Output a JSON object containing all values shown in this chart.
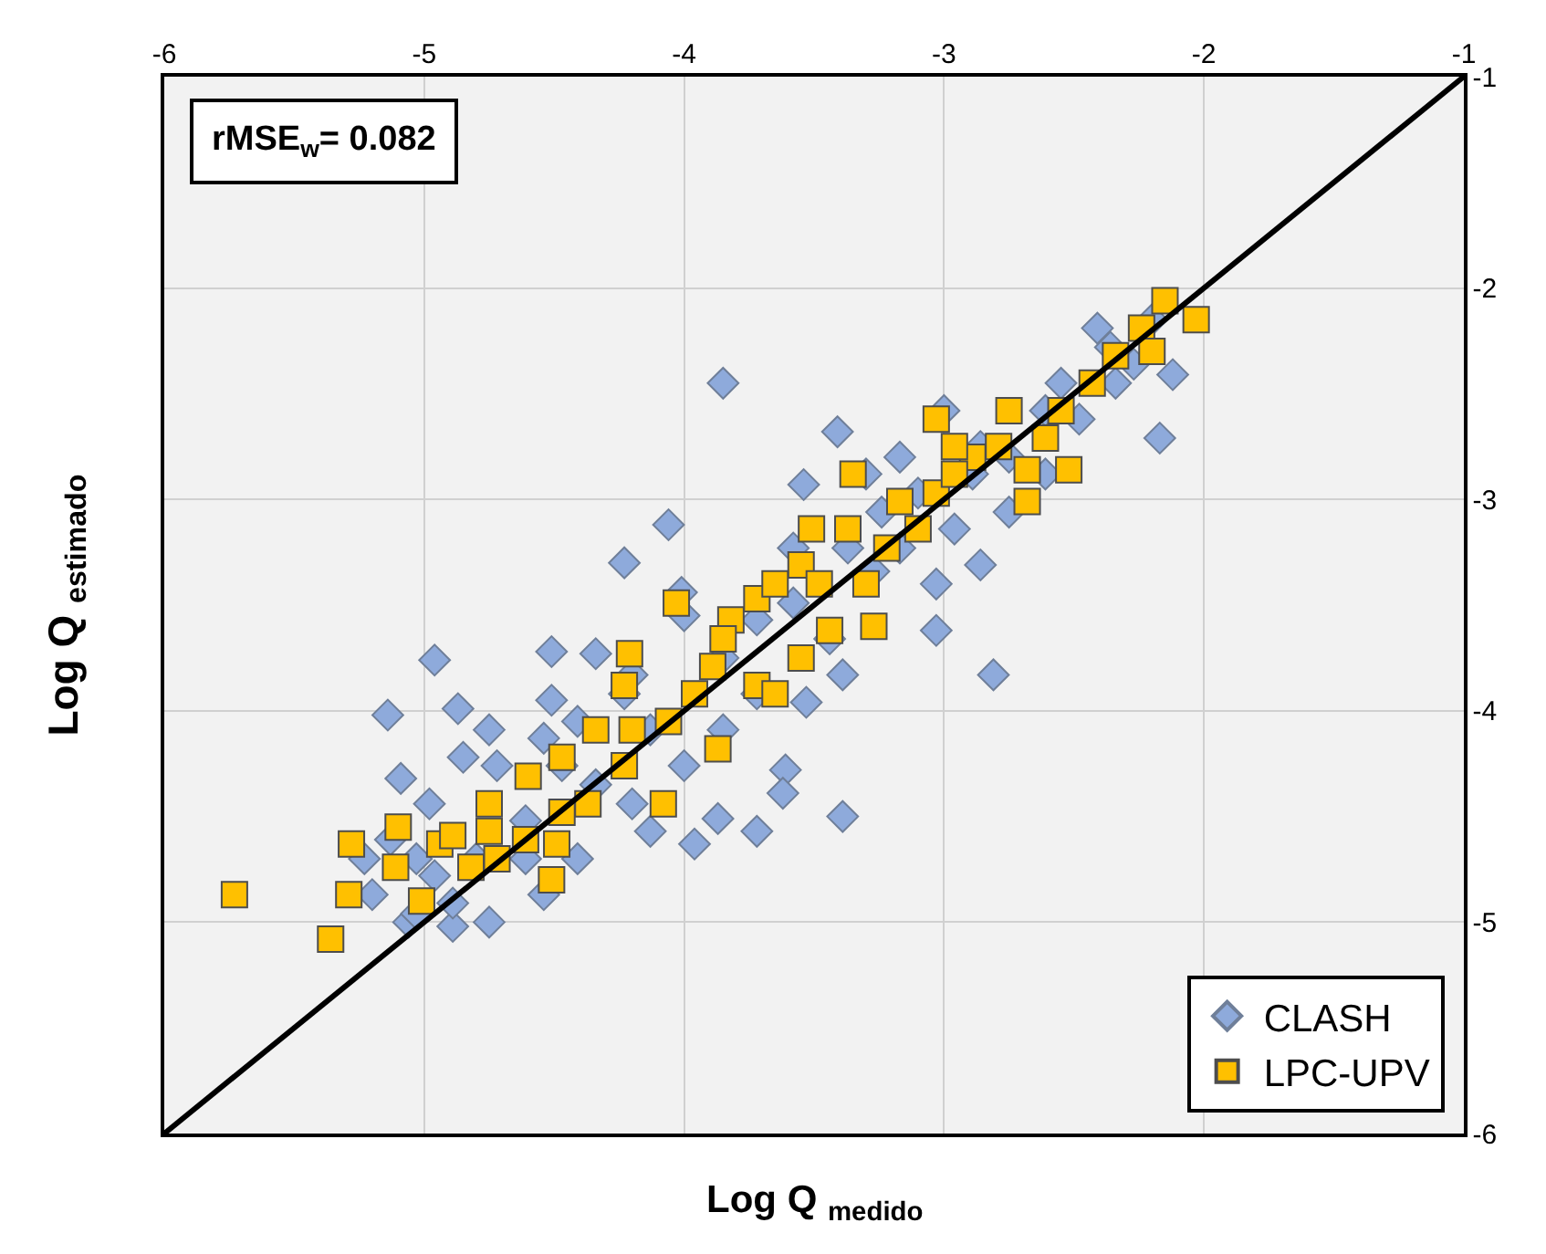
{
  "chart_data": {
    "type": "scatter",
    "xlabel": "Log Q $_{medido}$",
    "ylabel": "Log Q $_{estimado}$",
    "xlim": [
      -6,
      -1
    ],
    "xticks": [
      -6,
      -5,
      -4,
      -3,
      -2,
      -1
    ],
    "ylim": [
      -6,
      -1
    ],
    "yticks": [
      -6,
      -5,
      -4,
      -3,
      -2,
      -1
    ],
    "grid": true,
    "legend": "bottom right",
    "annotations": [
      "rMSE$_{w}$= 0.082"
    ],
    "series": [
      {
        "name": "CLASH",
        "color": "#8eaadb",
        "marker": "diamond",
        "x": [
          -5.14,
          -4.96,
          -5.09,
          -4.87,
          -4.98,
          -4.85,
          -4.75,
          -4.51,
          -4.51,
          -4.34,
          -4.01,
          -4.0,
          -4.23,
          -4.06,
          -3.85,
          -3.54,
          -3.41,
          -3.0,
          -2.86,
          -2.55,
          -2.36,
          -2.12,
          -2.17,
          -2.81,
          -3.03,
          -3.27,
          -3.39,
          -3.61,
          -3.62,
          -3.96,
          -3.87,
          -3.72,
          -3.53,
          -3.39,
          -4.75,
          -5.06,
          -5.2,
          -4.89,
          -4.54,
          -4.41,
          -4.61,
          -4.8,
          -4.96,
          -4.61,
          -4.34,
          -4.2,
          -4.47,
          -4.13,
          -4.23,
          -3.85,
          -3.72,
          -3.85,
          -3.72,
          -3.58,
          -3.44,
          -3.58,
          -3.37,
          -3.24,
          -3.17,
          -3.1,
          -2.96,
          -2.89,
          -2.75,
          -2.75,
          -2.61,
          -2.48,
          -2.34,
          -2.27,
          -2.2,
          -2.41,
          -2.61,
          -3.03,
          -2.86,
          -4.0,
          -5.23,
          -5.13,
          -5.03,
          -4.72,
          -4.54,
          -4.41,
          -4.2,
          -4.89,
          -5.03,
          -3.3,
          -3.17,
          -4.13
        ],
        "values": [
          -4.02,
          -3.76,
          -4.32,
          -3.99,
          -4.44,
          -4.22,
          -4.09,
          -3.95,
          -3.72,
          -3.73,
          -3.44,
          -3.55,
          -3.3,
          -3.12,
          -2.45,
          -2.93,
          -2.68,
          -2.58,
          -2.75,
          -2.45,
          -2.28,
          -2.41,
          -2.71,
          -3.83,
          -3.62,
          -3.34,
          -4.5,
          -4.28,
          -4.39,
          -4.63,
          -4.51,
          -4.57,
          -3.96,
          -3.83,
          -5.0,
          -5.0,
          -4.87,
          -5.02,
          -4.87,
          -4.7,
          -4.7,
          -4.7,
          -4.78,
          -4.52,
          -4.35,
          -4.44,
          -4.26,
          -4.09,
          -3.92,
          -4.09,
          -3.92,
          -3.75,
          -3.57,
          -3.49,
          -3.66,
          -3.23,
          -3.23,
          -3.06,
          -3.23,
          -2.97,
          -3.14,
          -2.88,
          -3.06,
          -2.8,
          -2.88,
          -2.62,
          -2.45,
          -2.36,
          -2.15,
          -2.19,
          -2.58,
          -3.4,
          -3.31,
          -4.26,
          -4.7,
          -4.61,
          -4.7,
          -4.26,
          -4.13,
          -4.05,
          -3.83,
          -4.91,
          -4.96,
          -2.88,
          -2.8,
          -4.57
        ]
      },
      {
        "name": "LPC-UPV",
        "color": "#ffc000",
        "marker": "square",
        "x": [
          -5.73,
          -5.28,
          -5.29,
          -5.36,
          -5.11,
          -5.1,
          -5.01,
          -4.94,
          -4.82,
          -4.72,
          -4.61,
          -4.51,
          -4.49,
          -4.6,
          -4.37,
          -4.23,
          -4.08,
          -4.2,
          -4.06,
          -4.21,
          -4.23,
          -3.96,
          -3.87,
          -3.89,
          -3.72,
          -3.65,
          -3.55,
          -3.44,
          -3.27,
          -3.3,
          -3.72,
          -3.82,
          -3.55,
          -3.48,
          -3.35,
          -3.22,
          -3.1,
          -3.03,
          -2.89,
          -2.79,
          -2.68,
          -2.68,
          -2.52,
          -2.55,
          -2.43,
          -2.34,
          -2.24,
          -2.15,
          -2.03,
          -2.2,
          -2.61,
          -2.96,
          -3.17,
          -3.37,
          -3.51,
          -3.65,
          -3.85,
          -4.03,
          -4.34,
          -4.47,
          -4.47,
          -4.75,
          -4.89,
          -4.75,
          -2.75,
          -3.03,
          -2.96
        ],
        "values": [
          -4.87,
          -4.63,
          -4.87,
          -5.08,
          -4.74,
          -4.55,
          -4.9,
          -4.63,
          -4.74,
          -4.7,
          -4.61,
          -4.8,
          -4.63,
          -4.31,
          -4.44,
          -4.26,
          -4.44,
          -4.09,
          -4.05,
          -3.73,
          -3.88,
          -3.92,
          -4.18,
          -3.79,
          -3.88,
          -3.92,
          -3.75,
          -3.62,
          -3.6,
          -3.4,
          -3.47,
          -3.57,
          -3.31,
          -3.4,
          -2.88,
          -3.23,
          -3.14,
          -2.97,
          -2.8,
          -2.75,
          -2.86,
          -3.01,
          -2.86,
          -2.58,
          -2.45,
          -2.32,
          -2.19,
          -2.06,
          -2.15,
          -2.3,
          -2.71,
          -2.88,
          -3.01,
          -3.14,
          -3.14,
          -3.4,
          -3.66,
          -3.49,
          -4.09,
          -4.22,
          -4.48,
          -4.44,
          -4.59,
          -4.57,
          -2.58,
          -2.62,
          -2.75
        ]
      },
      {
        "type": "line",
        "color": "#000000",
        "marker": "none",
        "line_style": "solid",
        "x": [
          -6,
          -1
        ],
        "values": [
          -6,
          -1
        ]
      }
    ]
  }
}
